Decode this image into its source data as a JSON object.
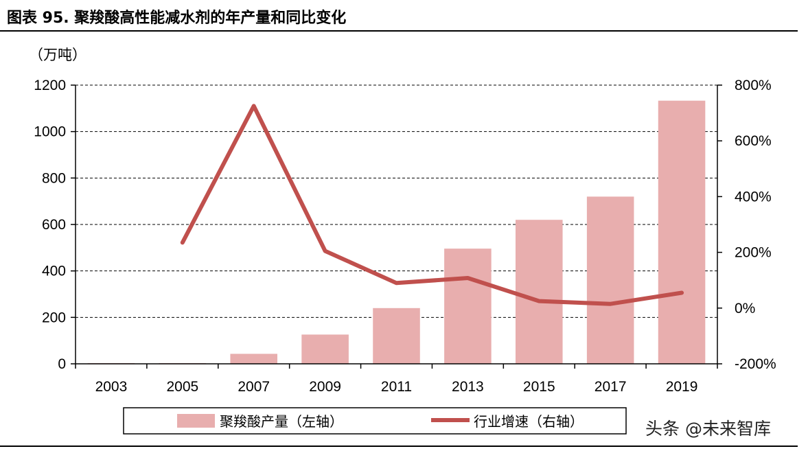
{
  "title": "图表 95. 聚羧酸高性能减水剂的年产量和同比变化",
  "unit_label": "（万吨）",
  "watermark": "头条 @未来智库",
  "colors": {
    "bar": "#e8aeae",
    "line": "#c0504d",
    "grid": "#000000"
  },
  "chart_data": {
    "type": "bar",
    "categories": [
      "2003",
      "2005",
      "2007",
      "2009",
      "2011",
      "2013",
      "2015",
      "2017",
      "2019"
    ],
    "series": [
      {
        "name": "聚羧酸产量（左轴）",
        "type": "bar",
        "axis": "left",
        "values": [
          3,
          3,
          43,
          126,
          240,
          496,
          620,
          720,
          1133
        ]
      },
      {
        "name": "行业增速（右轴）",
        "type": "line",
        "axis": "right",
        "values": [
          null,
          2.35,
          7.25,
          2.05,
          0.9,
          1.08,
          0.25,
          0.15,
          0.55
        ]
      }
    ],
    "y_left": {
      "min": 0,
      "max": 1200,
      "ticks": [
        0,
        200,
        400,
        600,
        800,
        1000,
        1200
      ]
    },
    "y_right": {
      "min": -2,
      "max": 8,
      "ticks": [
        -2,
        0,
        2,
        4,
        6,
        8
      ],
      "tick_labels": [
        "-200%",
        "0%",
        "200%",
        "400%",
        "600%",
        "800%"
      ]
    },
    "grid": "dashed horizontal",
    "legend": "bottom"
  }
}
